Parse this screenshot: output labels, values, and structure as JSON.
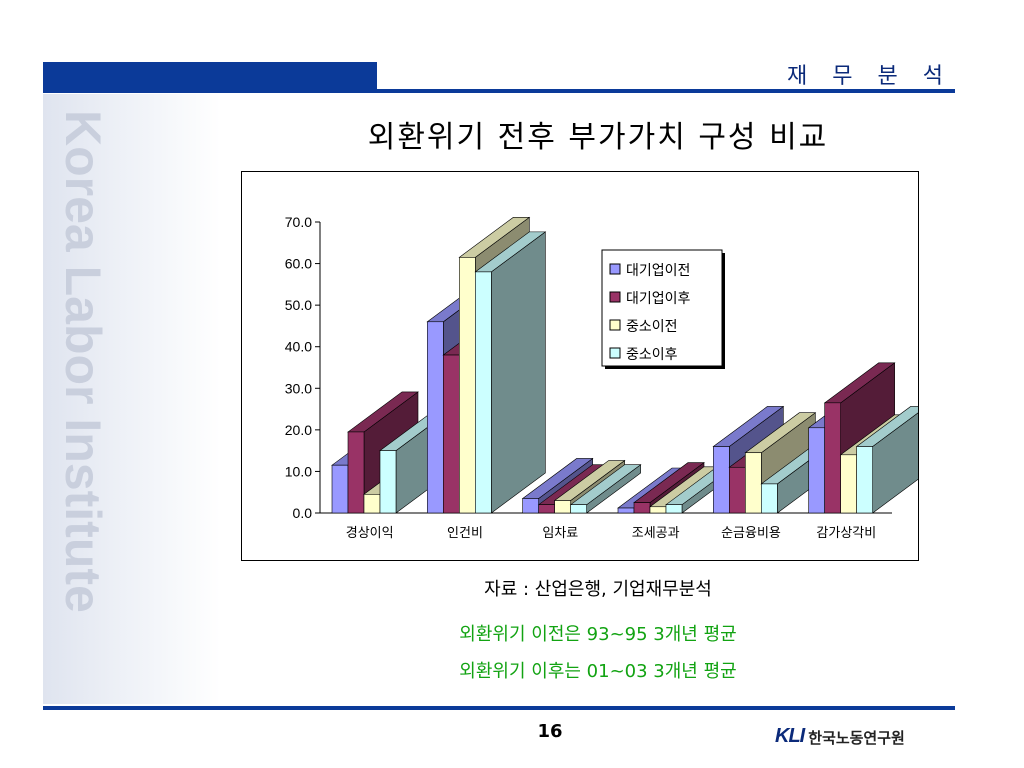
{
  "header": {
    "section_title": "재 무 분 석"
  },
  "side_watermark": "Korea Labor Institute",
  "slide_title": "외환위기 전후 부가가치 구성 비교",
  "notes": {
    "source": "자료 : 산업은행, 기업재무분석",
    "before": "외환위기 이전은 93~95 3개년 평균",
    "after": "외환위기 이후는 01~03 3개년 평균"
  },
  "footer": {
    "page_number": "16",
    "logo_mark": "KLI",
    "logo_text": "한국노동연구원"
  },
  "colors": {
    "accent": "#0b3a99",
    "note_green": "#12a312",
    "series": [
      "#9999ff",
      "#993366",
      "#ffffcc",
      "#ccffff"
    ]
  },
  "chart_data": {
    "type": "bar",
    "style": "3d-clustered-column",
    "categories": [
      "경상이익",
      "인건비",
      "임차료",
      "조세공과",
      "순금융비용",
      "감가상각비"
    ],
    "series": [
      {
        "name": "대기업이전",
        "values": [
          11.5,
          46.0,
          3.5,
          1.2,
          16.0,
          20.5
        ]
      },
      {
        "name": "대기업이후",
        "values": [
          19.5,
          38.0,
          2.0,
          2.5,
          11.0,
          26.5
        ]
      },
      {
        "name": "중소이전",
        "values": [
          4.5,
          61.5,
          3.0,
          1.5,
          14.5,
          14.0
        ]
      },
      {
        "name": "중소이후",
        "values": [
          15.0,
          58.0,
          2.0,
          2.0,
          7.0,
          16.0
        ]
      }
    ],
    "ylim": [
      0,
      70
    ],
    "yticks": [
      "0.0",
      "10.0",
      "20.0",
      "30.0",
      "40.0",
      "50.0",
      "60.0",
      "70.0"
    ],
    "legend_position": "top-right",
    "grid": false
  }
}
